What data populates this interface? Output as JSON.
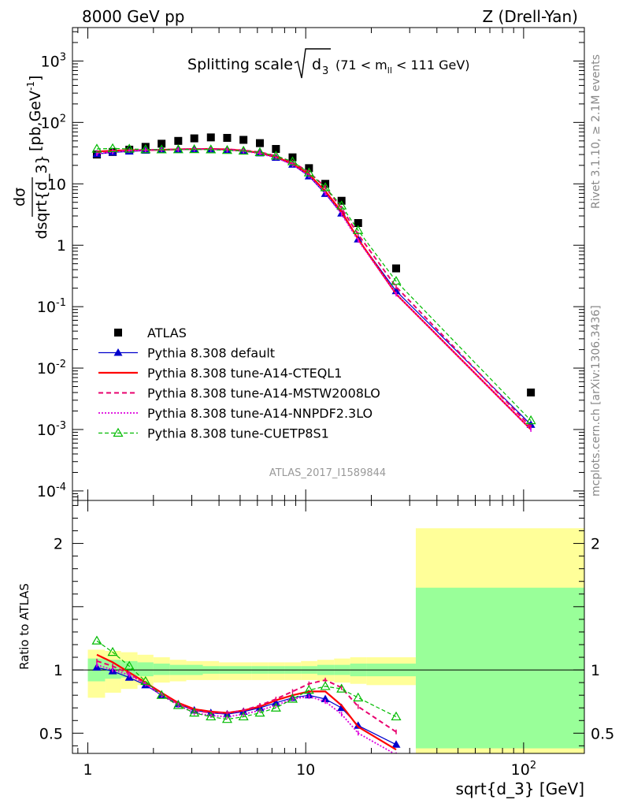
{
  "header": {
    "left": "8000 GeV pp",
    "right": "Z (Drell-Yan)"
  },
  "side": {
    "rivet": "Rivet 3.1.10, ≥ 2.1M events",
    "mcplots": "mcplots.cern.ch [arXiv:1306.3436]"
  },
  "analysis_id": "ATLAS_2017_I1589844",
  "chart_data": [
    {
      "type": "line",
      "title": "Splitting scale",
      "title_symbol": "√d₃",
      "title_cut": "(71 < m_ll < 111 GeV)",
      "xlabel": "sqrt{d_3} [GeV]",
      "ylabel": "dσ/dsqrt{d_3} [pb,GeV^-1]",
      "xscale": "log",
      "yscale": "log",
      "xlim": [
        0.85,
        190
      ],
      "ylim": [
        7e-05,
        3500
      ],
      "x_ticks": [
        "1",
        "10",
        "10^2"
      ],
      "y_ticks": [
        "10^-4",
        "10^-3",
        "10^-2",
        "10^-1",
        "1",
        "10",
        "10^2",
        "10^3"
      ],
      "legend_position": "bottom-left",
      "series": [
        {
          "name": "ATLAS",
          "color": "#000000",
          "style": "square-markers",
          "x": [
            1.1,
            1.3,
            1.55,
            1.84,
            2.18,
            2.6,
            3.08,
            3.67,
            4.36,
            5.18,
            6.16,
            7.3,
            8.7,
            10.35,
            12.3,
            14.6,
            17.4,
            26.0,
            108
          ],
          "y": [
            30,
            33,
            36,
            40,
            45,
            50,
            55,
            57,
            56,
            52,
            46,
            37,
            27,
            18,
            10,
            5.3,
            2.3,
            0.42,
            0.004
          ]
        },
        {
          "name": "Pythia 8.308 default",
          "color": "#0000cc",
          "style": "solid-triangles",
          "x": [
            1.1,
            1.3,
            1.55,
            1.84,
            2.18,
            2.6,
            3.08,
            3.67,
            4.36,
            5.18,
            6.16,
            7.3,
            8.7,
            10.35,
            12.3,
            14.6,
            17.4,
            26.0,
            108
          ],
          "y": [
            30.5,
            32.5,
            33.7,
            34.8,
            35.8,
            36.4,
            36.7,
            36.6,
            35.8,
            34.2,
            31.5,
            26.7,
            20.6,
            13.3,
            6.9,
            3.3,
            1.25,
            0.18,
            0.0012
          ]
        },
        {
          "name": "Pythia 8.308 tune-A14-CTEQL1",
          "color": "#ff0000",
          "style": "solid-line",
          "x": [
            1.1,
            1.3,
            1.55,
            1.84,
            2.18,
            2.6,
            3.08,
            3.67,
            4.36,
            5.18,
            6.16,
            7.3,
            8.7,
            10.35,
            12.3,
            14.6,
            17.4,
            26.0,
            108
          ],
          "y": [
            33.5,
            34.7,
            35.3,
            35.5,
            35.8,
            36.4,
            36.9,
            37.0,
            36.3,
            34.8,
            32.0,
            27.5,
            21.2,
            14.3,
            7.6,
            3.5,
            1.26,
            0.16,
            0.001
          ]
        },
        {
          "name": "Pythia 8.308 tune-A14-MSTW2008LO",
          "color": "#e8006e",
          "style": "dashed-line",
          "x": [
            1.1,
            1.3,
            1.55,
            1.84,
            2.18,
            2.6,
            3.08,
            3.67,
            4.36,
            5.18,
            6.16,
            7.3,
            8.7,
            10.35,
            12.3,
            14.6,
            17.4,
            26.0,
            108
          ],
          "y": [
            32.0,
            33.8,
            35.0,
            35.6,
            36.0,
            36.4,
            36.8,
            37.0,
            36.5,
            35.2,
            32.9,
            28.5,
            22.5,
            15.5,
            8.8,
            4.0,
            1.5,
            0.21,
            0.0011
          ]
        },
        {
          "name": "Pythia 8.308 tune-A14-NNPDF2.3LO",
          "color": "#dd00dd",
          "style": "dotted-line",
          "x": [
            1.1,
            1.3,
            1.55,
            1.84,
            2.18,
            2.6,
            3.08,
            3.67,
            4.36,
            5.18,
            6.16,
            7.3,
            8.7,
            10.35,
            12.3,
            14.6,
            17.4,
            26.0,
            108
          ],
          "y": [
            31.0,
            33.0,
            34.7,
            35.5,
            35.9,
            36.2,
            36.5,
            36.3,
            35.5,
            34.0,
            31.2,
            26.6,
            20.5,
            13.6,
            7.0,
            3.2,
            1.2,
            0.16,
            0.001
          ]
        },
        {
          "name": "Pythia 8.308 tune-CUETP8S1",
          "color": "#00bb00",
          "style": "dashed-open-triangles",
          "x": [
            1.1,
            1.3,
            1.55,
            1.84,
            2.18,
            2.6,
            3.08,
            3.67,
            4.36,
            5.18,
            6.16,
            7.3,
            8.7,
            10.35,
            12.3,
            14.6,
            17.4,
            26.0,
            108
          ],
          "y": [
            37.0,
            37.6,
            37.0,
            36.2,
            36.0,
            36.1,
            36.3,
            36.0,
            35.2,
            34.3,
            32.5,
            28.5,
            23.0,
            15.2,
            8.7,
            4.4,
            1.75,
            0.26,
            0.0014
          ]
        }
      ]
    },
    {
      "type": "line",
      "ylabel": "Ratio to ATLAS",
      "xscale": "log",
      "xlim": [
        0.85,
        190
      ],
      "ylim": [
        0.34,
        2.34
      ],
      "y_ticks": [
        "0.5",
        "1",
        "2"
      ],
      "reference_line": 1,
      "uncertainty_bands": {
        "bin_edges": [
          1.0,
          1.2,
          1.42,
          1.69,
          2.0,
          2.38,
          2.83,
          3.37,
          4.0,
          4.76,
          5.66,
          6.73,
          8.0,
          9.51,
          11.3,
          13.5,
          16.0,
          19.0,
          32.0,
          190
        ],
        "yellow_low": [
          0.78,
          0.82,
          0.85,
          0.88,
          0.9,
          0.91,
          0.92,
          0.92,
          0.92,
          0.92,
          0.92,
          0.92,
          0.92,
          0.92,
          0.91,
          0.9,
          0.89,
          0.88,
          0.24
        ],
        "yellow_high": [
          1.16,
          1.15,
          1.14,
          1.12,
          1.1,
          1.08,
          1.07,
          1.07,
          1.06,
          1.06,
          1.06,
          1.06,
          1.06,
          1.07,
          1.08,
          1.09,
          1.1,
          1.1,
          2.12
        ],
        "green_low": [
          0.91,
          0.93,
          0.94,
          0.95,
          0.96,
          0.96,
          0.96,
          0.97,
          0.97,
          0.97,
          0.97,
          0.97,
          0.97,
          0.97,
          0.96,
          0.96,
          0.95,
          0.95,
          0.38
        ],
        "green_high": [
          1.09,
          1.08,
          1.07,
          1.06,
          1.05,
          1.04,
          1.04,
          1.03,
          1.03,
          1.03,
          1.03,
          1.03,
          1.03,
          1.03,
          1.04,
          1.04,
          1.05,
          1.05,
          1.65
        ]
      },
      "series": [
        {
          "name": "Pythia 8.308 default",
          "x": [
            1.1,
            1.3,
            1.55,
            1.84,
            2.18,
            2.6,
            3.08,
            3.67,
            4.36,
            5.18,
            6.16,
            7.3,
            8.7,
            10.35,
            12.3,
            14.6,
            17.4,
            26.0
          ],
          "y": [
            1.02,
            0.99,
            0.94,
            0.88,
            0.8,
            0.73,
            0.68,
            0.66,
            0.65,
            0.67,
            0.7,
            0.74,
            0.78,
            0.8,
            0.77,
            0.7,
            0.56,
            0.41
          ]
        },
        {
          "name": "Pythia 8.308 tune-A14-CTEQL1",
          "x": [
            1.1,
            1.3,
            1.55,
            1.84,
            2.18,
            2.6,
            3.08,
            3.67,
            4.36,
            5.18,
            6.16,
            7.3,
            8.7,
            10.35,
            12.3,
            14.6,
            17.4,
            26.0
          ],
          "y": [
            1.12,
            1.06,
            0.98,
            0.9,
            0.82,
            0.74,
            0.69,
            0.67,
            0.66,
            0.68,
            0.71,
            0.76,
            0.8,
            0.83,
            0.83,
            0.72,
            0.55,
            0.37
          ]
        },
        {
          "name": "Pythia 8.308 tune-A14-MSTW2008LO",
          "x": [
            1.1,
            1.3,
            1.55,
            1.84,
            2.18,
            2.6,
            3.08,
            3.67,
            4.36,
            5.18,
            6.16,
            7.3,
            8.7,
            10.35,
            12.3,
            14.6,
            17.4,
            26.0
          ],
          "y": [
            1.07,
            1.03,
            0.97,
            0.89,
            0.81,
            0.73,
            0.68,
            0.66,
            0.66,
            0.68,
            0.72,
            0.77,
            0.83,
            0.89,
            0.92,
            0.86,
            0.71,
            0.51
          ]
        },
        {
          "name": "Pythia 8.308 tune-A14-NNPDF2.3LO",
          "x": [
            1.1,
            1.3,
            1.55,
            1.84,
            2.18,
            2.6,
            3.08,
            3.67,
            4.36,
            5.18,
            6.16,
            7.3,
            8.7,
            10.35,
            12.3,
            14.6,
            17.4,
            26.0
          ],
          "y": [
            1.04,
            1.0,
            0.96,
            0.89,
            0.8,
            0.72,
            0.66,
            0.64,
            0.63,
            0.65,
            0.68,
            0.72,
            0.77,
            0.79,
            0.75,
            0.65,
            0.5,
            0.33
          ]
        },
        {
          "name": "Pythia 8.308 tune-CUETP8S1",
          "x": [
            1.1,
            1.3,
            1.55,
            1.84,
            2.18,
            2.6,
            3.08,
            3.67,
            4.36,
            5.18,
            6.16,
            7.3,
            8.7,
            10.35,
            12.3,
            14.6,
            17.4,
            26.0
          ],
          "y": [
            1.23,
            1.14,
            1.03,
            0.91,
            0.8,
            0.72,
            0.66,
            0.63,
            0.61,
            0.63,
            0.66,
            0.7,
            0.77,
            0.84,
            0.87,
            0.85,
            0.78,
            0.63
          ]
        }
      ]
    }
  ]
}
